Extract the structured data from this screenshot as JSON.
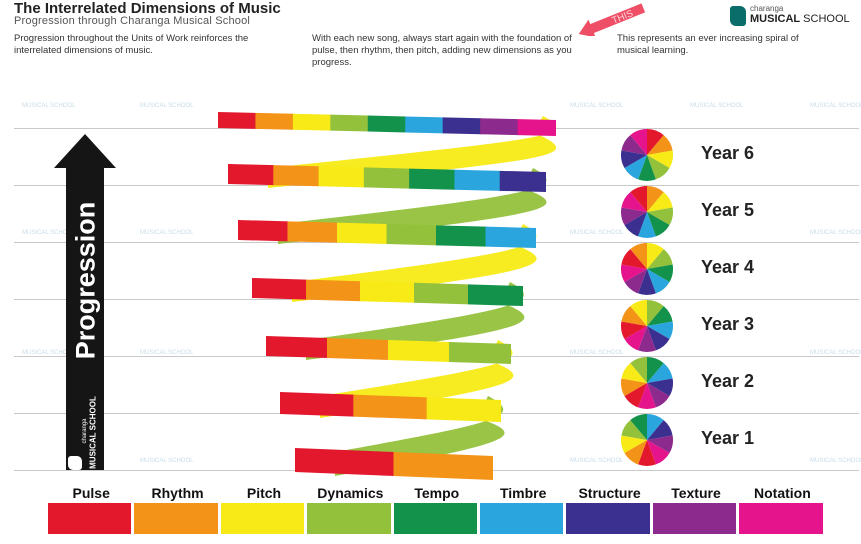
{
  "header": {
    "title": "The Interrelated Dimensions of Music",
    "subtitle": "Progression through Charanga Musical School",
    "brand_small": "charanga",
    "brand_big": "MUSICAL",
    "brand_big_rest": " SCHOOL",
    "banner_text": "THIS"
  },
  "descriptions": [
    "Progression throughout the Units of Work reinforces the interrelated dimensions of music.",
    "With each new song, always start again with the foundation of pulse, then rhythm, then pitch, adding new dimensions as you progress.",
    "This represents an ever increasing spiral of musical learning."
  ],
  "progression": {
    "label": "Progression",
    "logo_small": "charanga",
    "logo_big": "MUSICAL SCHOOL"
  },
  "years": [
    "Year 6",
    "Year 5",
    "Year 4",
    "Year 3",
    "Year 2",
    "Year 1"
  ],
  "dimensions": [
    {
      "name": "Pulse",
      "color": "#e3182d"
    },
    {
      "name": "Rhythm",
      "color": "#f39317"
    },
    {
      "name": "Pitch",
      "color": "#f7ea16"
    },
    {
      "name": "Dynamics",
      "color": "#94c13c"
    },
    {
      "name": "Tempo",
      "color": "#12924a"
    },
    {
      "name": "Timbre",
      "color": "#2aa5dd"
    },
    {
      "name": "Structure",
      "color": "#3b2f8f"
    },
    {
      "name": "Texture",
      "color": "#8c2b8d"
    },
    {
      "name": "Notation",
      "color": "#e5138c"
    }
  ],
  "watermark": "MUSICAL SCHOOL"
}
